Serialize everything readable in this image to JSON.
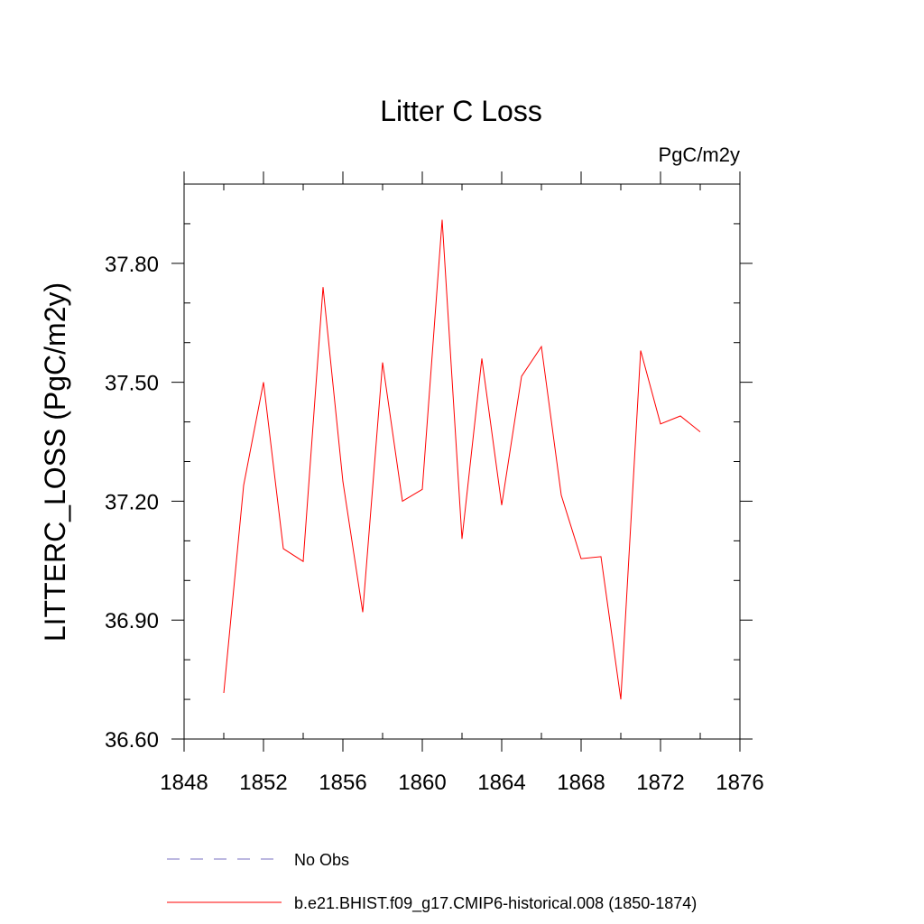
{
  "chart_data": {
    "type": "line",
    "title": "Litter C Loss",
    "units_label": "PgC/m2y",
    "ylabel": "LITTERC_LOSS  (PgC/m2y)",
    "xlabel": "",
    "xlim": [
      1848,
      1876
    ],
    "ylim": [
      36.6,
      38.0
    ],
    "x_ticks": [
      1848,
      1852,
      1856,
      1860,
      1864,
      1868,
      1872,
      1876
    ],
    "x_tick_labels": [
      "1848",
      "1852",
      "1856",
      "1860",
      "1864",
      "1868",
      "1872",
      "1876"
    ],
    "y_ticks": [
      36.6,
      36.9,
      37.2,
      37.5,
      37.8
    ],
    "y_tick_labels": [
      "36.60",
      "36.90",
      "37.20",
      "37.50",
      "37.80"
    ],
    "grid": false,
    "legend_position": "bottom",
    "series": [
      {
        "name": "b.e21.BHIST.f09_g17.CMIP6-historical.008 (1850-1874)",
        "color": "#ff0000",
        "style": "solid",
        "x": [
          1850,
          1851,
          1852,
          1853,
          1854,
          1855,
          1856,
          1857,
          1858,
          1859,
          1860,
          1861,
          1862,
          1863,
          1864,
          1865,
          1866,
          1867,
          1868,
          1869,
          1870,
          1871,
          1872,
          1873,
          1874
        ],
        "y": [
          36.716,
          37.24,
          37.5,
          37.08,
          37.048,
          37.74,
          37.25,
          36.92,
          37.55,
          37.2,
          37.23,
          37.91,
          37.105,
          37.56,
          37.19,
          37.515,
          37.59,
          37.215,
          37.055,
          37.06,
          36.7,
          37.58,
          37.395,
          37.415,
          37.375
        ]
      }
    ],
    "legend": [
      {
        "label": "No Obs",
        "color": "#7a72c2",
        "style": "dashed"
      },
      {
        "label": "b.e21.BHIST.f09_g17.CMIP6-historical.008 (1850-1874)",
        "color": "#ff0000",
        "style": "solid"
      }
    ]
  }
}
